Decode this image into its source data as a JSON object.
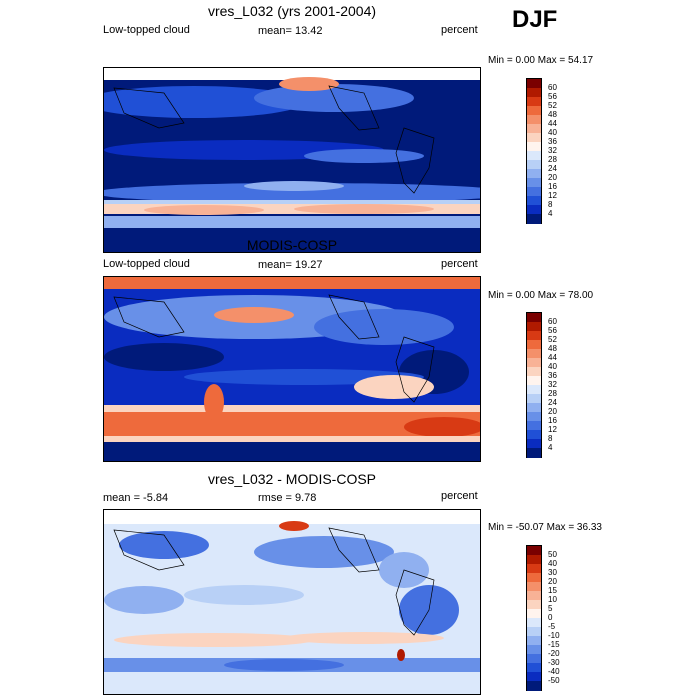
{
  "season": "DJF",
  "panels": [
    {
      "title": "vres_L032 (yrs 2001-2004)",
      "left_label": "Low-topped cloud",
      "center_label": "mean=  13.42",
      "right_label": "percent",
      "minmax": "Min =   0.00 Max =  54.17",
      "colorbar_labels": [
        "60",
        "56",
        "52",
        "48",
        "44",
        "40",
        "36",
        "32",
        "28",
        "24",
        "20",
        "16",
        "12",
        "8",
        "4"
      ],
      "colors": [
        "#7a0000",
        "#b01a00",
        "#d83a14",
        "#ee6a3c",
        "#f4906a",
        "#f8b296",
        "#fbd4c0",
        "#fff4ee",
        "#dbe8fb",
        "#b8d0f6",
        "#90b0f0",
        "#6890e8",
        "#4470e0",
        "#2050d6",
        "#0a2cc0",
        "#001a7a"
      ]
    },
    {
      "title": "MODIS-COSP",
      "left_label": "Low-topped cloud",
      "center_label": "mean=  19.27",
      "right_label": "percent",
      "minmax": "Min =   0.00 Max =  78.00",
      "colorbar_labels": [
        "60",
        "56",
        "52",
        "48",
        "44",
        "40",
        "36",
        "32",
        "28",
        "24",
        "20",
        "16",
        "12",
        "8",
        "4"
      ],
      "colors": [
        "#7a0000",
        "#b01a00",
        "#d83a14",
        "#ee6a3c",
        "#f4906a",
        "#f8b296",
        "#fbd4c0",
        "#fff4ee",
        "#dbe8fb",
        "#b8d0f6",
        "#90b0f0",
        "#6890e8",
        "#4470e0",
        "#2050d6",
        "#0a2cc0",
        "#001a7a"
      ]
    },
    {
      "title": "vres_L032 - MODIS-COSP",
      "left_label": "mean =  -5.84",
      "center_label": "rmse =   9.78",
      "right_label": "percent",
      "minmax": "Min = -50.07 Max =  36.33",
      "colorbar_labels": [
        "50",
        "40",
        "30",
        "20",
        "15",
        "10",
        "5",
        "0",
        "-5",
        "-10",
        "-15",
        "-20",
        "-30",
        "-40",
        "-50"
      ],
      "colors": [
        "#7a0000",
        "#b01a00",
        "#d83a14",
        "#ee6a3c",
        "#f4906a",
        "#f8b296",
        "#fbd4c0",
        "#fff4ee",
        "#dbe8fb",
        "#b8d0f6",
        "#90b0f0",
        "#6890e8",
        "#4470e0",
        "#2050d6",
        "#0a2cc0",
        "#001a7a"
      ]
    }
  ]
}
